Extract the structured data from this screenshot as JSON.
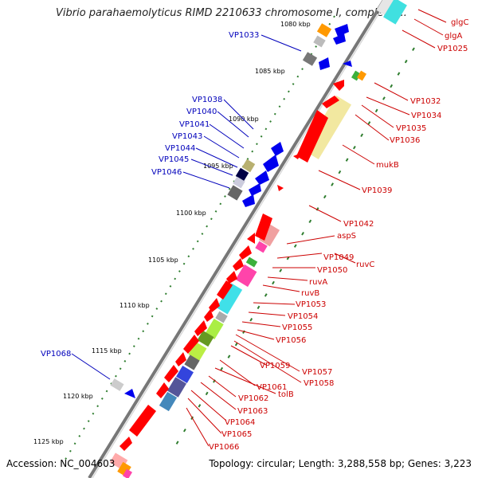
{
  "title": "Vibrio parahaemolyticus RIMD 2210633 chromosome I, complete ...",
  "footer": {
    "accession": "Accession: NC_004603",
    "summary": "Topology: circular; Length: 3,288,558 bp; Genes: 3,223"
  },
  "colors": {
    "forward_label": "#cc0000",
    "reverse_label": "#0000bb",
    "backbone": "#777777",
    "tick_dots": "#2e7d2e"
  },
  "ticks": [
    "1080 kbp",
    "1085 kbp",
    "1090 kbp",
    "1095 kbp",
    "1100 kbp",
    "1105 kbp",
    "1110 kbp",
    "1115 kbp",
    "1120 kbp",
    "1125 kbp"
  ],
  "left_labels": [
    "VP1033",
    "VP1038",
    "VP1040",
    "VP1041",
    "VP1043",
    "VP1044",
    "VP1045",
    "VP1046",
    "VP1068"
  ],
  "right_labels": [
    "glgC",
    "glgA",
    "VP1025",
    "VP1032",
    "VP1034",
    "VP1035",
    "VP1036",
    "mukB",
    "VP1039",
    "VP1042",
    "aspS",
    "VP1049",
    "ruvC",
    "VP1050",
    "ruvA",
    "ruvB",
    "VP1053",
    "VP1054",
    "VP1055",
    "VP1056",
    "VP1057",
    "VP1058",
    "VP1059",
    "VP1061",
    "tolB",
    "VP1062",
    "VP1063",
    "VP1064",
    "VP1065",
    "VP1066"
  ]
}
